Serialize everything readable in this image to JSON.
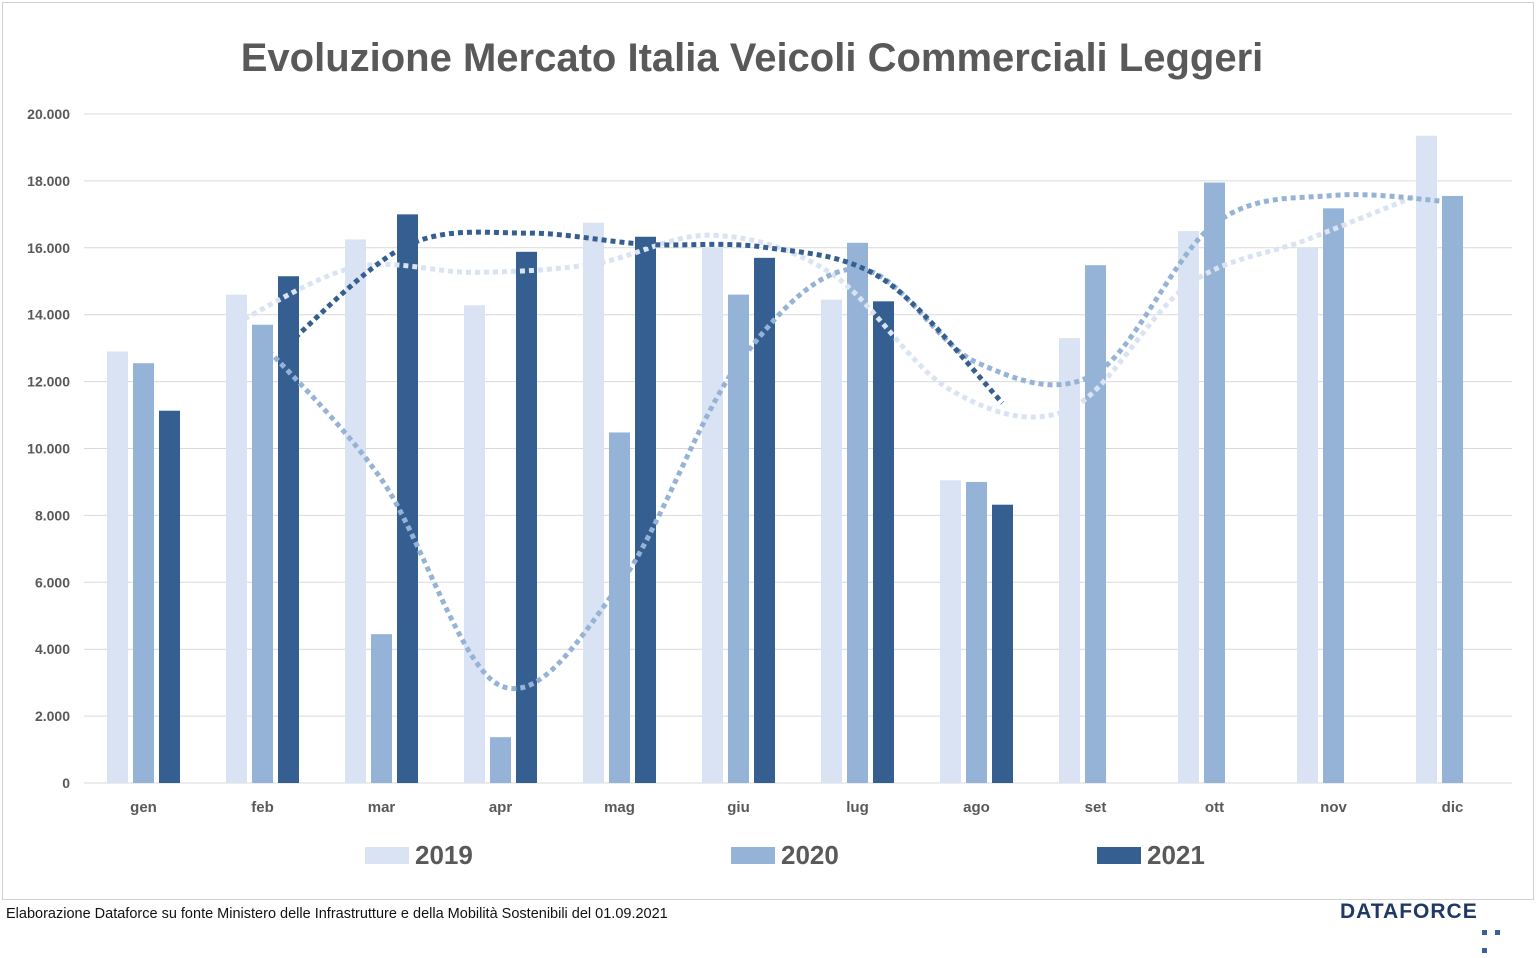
{
  "colors": {
    "y2019": "#dae3f3",
    "y2020": "#95b3d7",
    "y2021": "#365f91",
    "gridline": "#d9d9d9",
    "axis_text": "#595959",
    "brand": "#1f3864"
  },
  "chart_data": {
    "type": "bar",
    "title": "Evoluzione Mercato Italia Veicoli Commerciali Leggeri",
    "xlabel": "",
    "ylabel": "",
    "ylim": [
      0,
      20000
    ],
    "y_ticks": [
      0,
      2000,
      4000,
      6000,
      8000,
      10000,
      12000,
      14000,
      16000,
      18000,
      20000
    ],
    "y_tick_labels": [
      "0",
      "2.000",
      "4.000",
      "6.000",
      "8.000",
      "10.000",
      "12.000",
      "14.000",
      "16.000",
      "18.000",
      "20.000"
    ],
    "categories": [
      "gen",
      "feb",
      "mar",
      "apr",
      "mag",
      "giu",
      "lug",
      "ago",
      "set",
      "ott",
      "nov",
      "dic"
    ],
    "series": [
      {
        "name": "2019",
        "color": "#dae3f3",
        "values": [
          12900,
          14600,
          16250,
          14280,
          16750,
          16000,
          14450,
          9050,
          13300,
          16500,
          16000,
          19350
        ]
      },
      {
        "name": "2020",
        "color": "#95b3d7",
        "values": [
          12550,
          13700,
          4450,
          1370,
          10480,
          14600,
          16150,
          9000,
          15480,
          17950,
          17180,
          17550
        ]
      },
      {
        "name": "2021",
        "color": "#365f91",
        "values": [
          11130,
          15150,
          17000,
          15880,
          16330,
          15700,
          14400,
          8320,
          null,
          null,
          null,
          null
        ]
      }
    ],
    "trendlines": "moving average (2 periods), dotted, one per series",
    "grid": true,
    "legend_position": "bottom"
  },
  "legend": [
    {
      "label": "2019",
      "color": "#dae3f3"
    },
    {
      "label": "2020",
      "color": "#95b3d7"
    },
    {
      "label": "2021",
      "color": "#365f91"
    }
  ],
  "footer": {
    "source_note": "Elaborazione Dataforce su fonte Ministero delle Infrastrutture e della Mobilità Sostenibili del 01.09.2021",
    "brand": "DATAFORCE"
  }
}
